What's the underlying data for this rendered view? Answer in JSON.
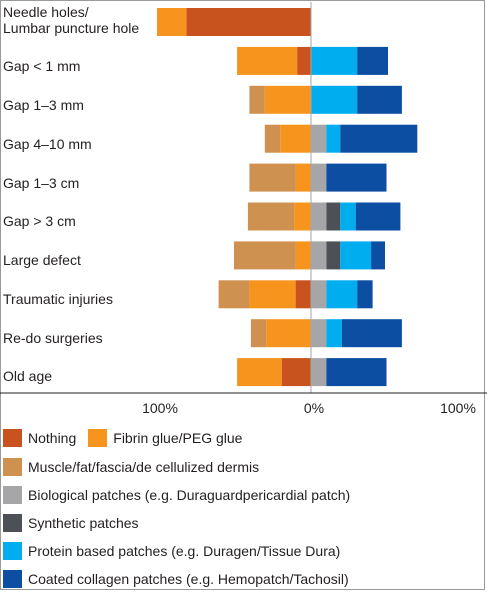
{
  "chart_data": {
    "type": "bar",
    "orientation": "horizontal",
    "stacked": "diverging",
    "categories": [
      "Needle holes/\nLumbar puncture hole",
      "Gap < 1 mm",
      "Gap 1–3 mm",
      "Gap 4–10 mm",
      "Gap 1–3 cm",
      "Gap > 3 cm",
      "Large defect",
      "Traumatic injuries",
      "Re-do surgeries",
      "Old age"
    ],
    "tick_labels": [
      "100%",
      "0%",
      "100%"
    ],
    "xlim": [
      -100,
      100
    ],
    "grid": false,
    "legend_position": "bottom",
    "series": [
      {
        "name": "Nothing",
        "color": "#c8531f",
        "values": [
          -81,
          -9,
          0,
          0,
          0,
          0,
          0,
          -10,
          0,
          -19
        ]
      },
      {
        "name": "Fibrin glue/PEG glue",
        "color": "#f7941d",
        "values": [
          -19,
          -39,
          -30,
          -20,
          -10,
          -11,
          -10,
          -30,
          -29,
          -29
        ]
      },
      {
        "name": "Muscle/fat/fascia/de cellulized dermis",
        "color": "#cf914f",
        "values": [
          0,
          0,
          -10,
          -10,
          -30,
          -30,
          -40,
          -20,
          -10,
          0
        ]
      },
      {
        "name": "Biological patches (e.g. Duraguardpericardial patch)",
        "color": "#a6a6a8",
        "values": [
          0,
          0,
          0,
          10,
          10,
          10,
          10,
          10,
          10,
          10
        ]
      },
      {
        "name": "Synthetic patches",
        "color": "#4d5057",
        "values": [
          0,
          0,
          0,
          0,
          0,
          9,
          9,
          0,
          0,
          0
        ]
      },
      {
        "name": "Protein based patches (e.g. Duragen/Tissue Dura)",
        "color": "#00aeef",
        "values": [
          0,
          30,
          30,
          9,
          0,
          10,
          20,
          20,
          10,
          0
        ]
      },
      {
        "name": "Coated collagen patches (e.g. Hemopatch/Tachosil)",
        "color": "#0b4ea2",
        "values": [
          0,
          20,
          29,
          50,
          39,
          29,
          9,
          10,
          39,
          39
        ]
      }
    ]
  }
}
